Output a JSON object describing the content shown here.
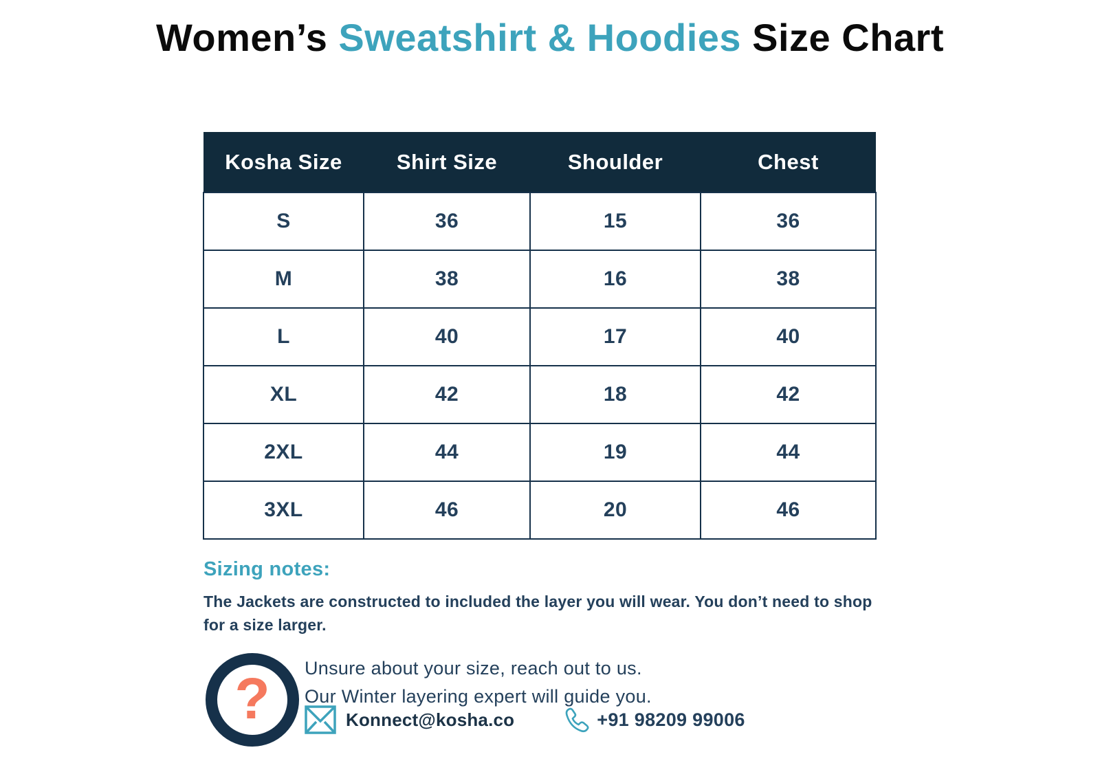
{
  "title": {
    "part1": "Women’s ",
    "highlight": "Sweatshirt & Hoodies",
    "part2": " Size Chart"
  },
  "chart_data": {
    "type": "table",
    "columns": [
      "Kosha Size",
      "Shirt Size",
      "Shoulder",
      "Chest"
    ],
    "rows": [
      [
        "S",
        "36",
        "15",
        "36"
      ],
      [
        "M",
        "38",
        "16",
        "38"
      ],
      [
        "L",
        "40",
        "17",
        "40"
      ],
      [
        "XL",
        "42",
        "18",
        "42"
      ],
      [
        "2XL",
        "44",
        "19",
        "44"
      ],
      [
        "3XL",
        "46",
        "20",
        "46"
      ]
    ]
  },
  "table": {
    "headers": [
      "Kosha Size",
      "Shirt Size",
      "Shoulder",
      "Chest"
    ],
    "rows": [
      [
        "S",
        "36",
        "15",
        "36"
      ],
      [
        "M",
        "38",
        "16",
        "38"
      ],
      [
        "L",
        "40",
        "17",
        "40"
      ],
      [
        "XL",
        "42",
        "18",
        "42"
      ],
      [
        "2XL",
        "44",
        "19",
        "44"
      ],
      [
        "3XL",
        "46",
        "20",
        "46"
      ]
    ]
  },
  "sizing_notes": {
    "heading": "Sizing notes:",
    "body": "The Jackets are constructed to included the layer you will wear. You don’t need to shop for a size larger."
  },
  "contact": {
    "question_mark": "?",
    "line1": "Unsure about your size, reach out to us.",
    "line2": "Our Winter layering expert will guide you.",
    "email": "Konnect@kosha.co",
    "phone": "+91 98209 99006"
  },
  "colors": {
    "navy_header": "#112b3c",
    "navy_text": "#24405b",
    "teal_accent": "#3da3bc",
    "coral_accent": "#f5795e",
    "background": "#ffffff"
  }
}
